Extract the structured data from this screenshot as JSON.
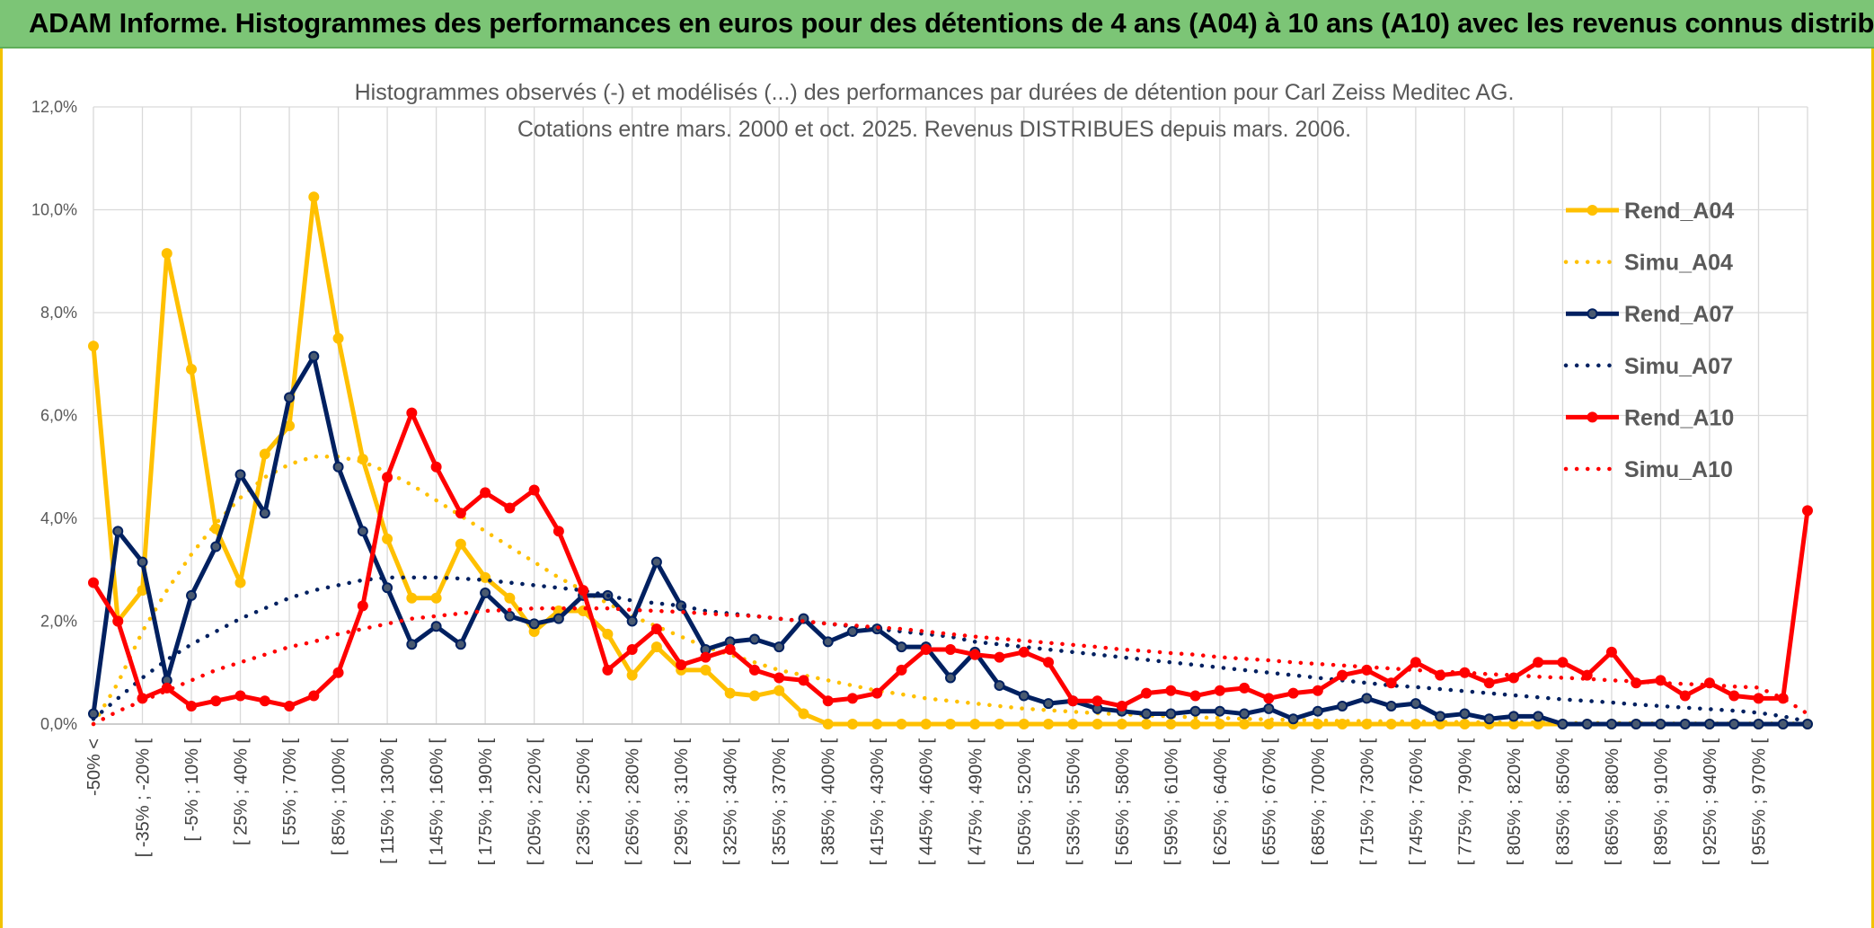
{
  "banner": {
    "title": "ADAM Informe. Histogrammes des performances en euros pour des détentions de 4 ans (A04) à 10 ans (A10) avec les revenus connus distribués"
  },
  "colors": {
    "banner_bg": "#7cc576",
    "a04": "#ffc000",
    "a07": "#002060",
    "a10": "#ff0000",
    "grid": "#d9d9d9"
  },
  "chart_data": {
    "type": "line",
    "title_line1": "Histogrammes observés (-) et modélisés (...) des performances par durées de détention pour Carl Zeiss Meditec AG.",
    "title_line2": "Cotations entre mars. 2000 et oct. 2025. Revenus DISTRIBUES depuis mars. 2006.",
    "y_ticks": [
      "0,0%",
      "2,0%",
      "4,0%",
      "6,0%",
      "8,0%",
      "10,0%",
      "12,0%"
    ],
    "ylim": [
      0,
      12
    ],
    "x_count": 36,
    "x_tick_labels": [
      "-50% <",
      "[ -35% ; -20% [",
      "[ -5% ; 10% [",
      "[ 25% ; 40% [",
      "[ 55% ; 70% [",
      "[ 85% ; 100% [",
      "[ 115% ; 130% [",
      "[ 145% ; 160% [",
      "[ 175% ; 190% [",
      "[ 205% ; 220% [",
      "[ 235% ; 250% [",
      "[ 265% ; 280% [",
      "[ 295% ; 310% [",
      "[ 325% ; 340% [",
      "[ 355% ; 370% [",
      "[ 385% ; 400% [",
      "[ 415% ; 430% [",
      "[ 445% ; 460% [",
      "[ 475% ; 490% [",
      "[ 505% ; 520% [",
      "[ 535% ; 550% [",
      "[ 565% ; 580% [",
      "[ 595% ; 610% [",
      "[ 625% ; 640% [",
      "[ 655% ; 670% [",
      "[ 685% ; 700% [",
      "[ 715% ; 730% [",
      "[ 745% ; 760% [",
      "[ 775% ; 790% [",
      "[ 805% ; 820% [",
      "[ 835% ; 850% [",
      "[ 865% ; 880% [",
      "[ 895% ; 910% [",
      "[ 925% ; 940% [",
      "[ 955% ; 970% [",
      ""
    ],
    "legend_position": "right",
    "series": [
      {
        "name": "Rend_A04",
        "style": "solid",
        "color": "#ffc000",
        "values": [
          7.35,
          2.0,
          2.6,
          9.15,
          6.9,
          3.8,
          2.75,
          5.25,
          5.8,
          10.25,
          7.5,
          5.15,
          3.6,
          2.45,
          2.45,
          3.5,
          2.85,
          2.45,
          1.8,
          2.2,
          2.2,
          1.75,
          0.95,
          1.5,
          1.05,
          1.05,
          0.6,
          0.55,
          0.65,
          0.2,
          0.0,
          0.0,
          0.0,
          0.0,
          0.0,
          0.0,
          0.0,
          0.0,
          0.0,
          0.0,
          0.0,
          0.0,
          0.0,
          0.0,
          0.0,
          0.0,
          0.0,
          0.0,
          0.0,
          0.0,
          0.0,
          0.0,
          0.0,
          0.0,
          0.0,
          0.0,
          0.0,
          0.0,
          0.0,
          0.0,
          0.0,
          0.0,
          0.0,
          0.0,
          0.0,
          0.0,
          0.0,
          0.0,
          0.0,
          0.0,
          0.0
        ]
      },
      {
        "name": "Simu_A04",
        "style": "dotted",
        "color": "#ffc000",
        "values": [
          0.0,
          0.8,
          1.8,
          2.6,
          3.3,
          3.9,
          4.4,
          4.8,
          5.05,
          5.2,
          5.2,
          5.1,
          4.9,
          4.65,
          4.35,
          4.05,
          3.75,
          3.45,
          3.15,
          2.85,
          2.6,
          2.35,
          2.1,
          1.9,
          1.7,
          1.5,
          1.35,
          1.2,
          1.05,
          0.95,
          0.85,
          0.75,
          0.65,
          0.58,
          0.5,
          0.45,
          0.4,
          0.35,
          0.3,
          0.27,
          0.24,
          0.21,
          0.19,
          0.17,
          0.15,
          0.13,
          0.12,
          0.1,
          0.09,
          0.08,
          0.07,
          0.06,
          0.06,
          0.05,
          0.05,
          0.04,
          0.04,
          0.03,
          0.03,
          0.03,
          0.02,
          0.02,
          0.02,
          0.02,
          0.01,
          0.01,
          0.01,
          0.01,
          0.01,
          0.01,
          0.01
        ]
      },
      {
        "name": "Rend_A07",
        "style": "solid",
        "color": "#002060",
        "values": [
          0.2,
          3.75,
          3.15,
          0.85,
          2.5,
          3.45,
          4.85,
          4.1,
          6.35,
          7.15,
          5.0,
          3.75,
          2.65,
          1.55,
          1.9,
          1.55,
          2.55,
          2.1,
          1.95,
          2.05,
          2.5,
          2.5,
          2.0,
          3.15,
          2.3,
          1.45,
          1.6,
          1.65,
          1.5,
          2.05,
          1.6,
          1.8,
          1.85,
          1.5,
          1.5,
          0.9,
          1.4,
          0.75,
          0.55,
          0.4,
          0.45,
          0.3,
          0.25,
          0.2,
          0.2,
          0.25,
          0.25,
          0.2,
          0.3,
          0.1,
          0.25,
          0.35,
          0.5,
          0.35,
          0.4,
          0.15,
          0.2,
          0.1,
          0.15,
          0.15,
          0.0,
          0.0,
          0.0,
          0.0,
          0.0,
          0.0,
          0.0,
          0.0,
          0.0,
          0.0,
          0.0
        ]
      },
      {
        "name": "Simu_A07",
        "style": "dotted",
        "color": "#002060",
        "values": [
          0.1,
          0.5,
          0.9,
          1.25,
          1.55,
          1.8,
          2.05,
          2.25,
          2.45,
          2.6,
          2.7,
          2.8,
          2.85,
          2.85,
          2.85,
          2.83,
          2.8,
          2.75,
          2.7,
          2.65,
          2.6,
          2.5,
          2.4,
          2.35,
          2.3,
          2.2,
          2.15,
          2.1,
          2.05,
          2.0,
          1.95,
          1.9,
          1.85,
          1.8,
          1.75,
          1.7,
          1.6,
          1.55,
          1.5,
          1.45,
          1.4,
          1.35,
          1.3,
          1.25,
          1.2,
          1.15,
          1.1,
          1.05,
          1.0,
          0.95,
          0.9,
          0.85,
          0.8,
          0.75,
          0.72,
          0.68,
          0.64,
          0.6,
          0.56,
          0.52,
          0.48,
          0.45,
          0.42,
          0.38,
          0.35,
          0.32,
          0.29,
          0.26,
          0.22,
          0.15,
          0.05
        ]
      },
      {
        "name": "Rend_A10",
        "style": "solid",
        "color": "#ff0000",
        "values": [
          2.75,
          2.0,
          0.5,
          0.7,
          0.35,
          0.45,
          0.55,
          0.45,
          0.35,
          0.55,
          1.0,
          2.3,
          4.8,
          6.05,
          5.0,
          4.1,
          4.5,
          4.2,
          4.55,
          3.75,
          2.6,
          1.05,
          1.45,
          1.85,
          1.15,
          1.3,
          1.45,
          1.05,
          0.9,
          0.85,
          0.45,
          0.5,
          0.6,
          1.05,
          1.45,
          1.45,
          1.35,
          1.3,
          1.4,
          1.2,
          0.45,
          0.45,
          0.35,
          0.6,
          0.65,
          0.55,
          0.65,
          0.7,
          0.5,
          0.6,
          0.65,
          0.95,
          1.05,
          0.8,
          1.2,
          0.95,
          1.0,
          0.8,
          0.9,
          1.2,
          1.2,
          0.95,
          1.4,
          0.8,
          0.85,
          0.55,
          0.8,
          0.55,
          0.5,
          0.5,
          4.15
        ]
      },
      {
        "name": "Simu_A10",
        "style": "dotted",
        "color": "#ff0000",
        "values": [
          0.0,
          0.25,
          0.45,
          0.65,
          0.85,
          1.05,
          1.2,
          1.35,
          1.5,
          1.6,
          1.75,
          1.85,
          1.95,
          2.05,
          2.1,
          2.15,
          2.2,
          2.22,
          2.25,
          2.25,
          2.25,
          2.25,
          2.22,
          2.2,
          2.18,
          2.15,
          2.12,
          2.1,
          2.05,
          2.0,
          1.95,
          1.92,
          1.88,
          1.85,
          1.8,
          1.75,
          1.7,
          1.66,
          1.62,
          1.58,
          1.54,
          1.5,
          1.45,
          1.42,
          1.38,
          1.35,
          1.3,
          1.27,
          1.24,
          1.2,
          1.17,
          1.14,
          1.11,
          1.08,
          1.05,
          1.02,
          1.0,
          0.97,
          0.95,
          0.92,
          0.9,
          0.88,
          0.85,
          0.83,
          0.8,
          0.78,
          0.76,
          0.73,
          0.71,
          0.5,
          0.2
        ]
      }
    ]
  }
}
